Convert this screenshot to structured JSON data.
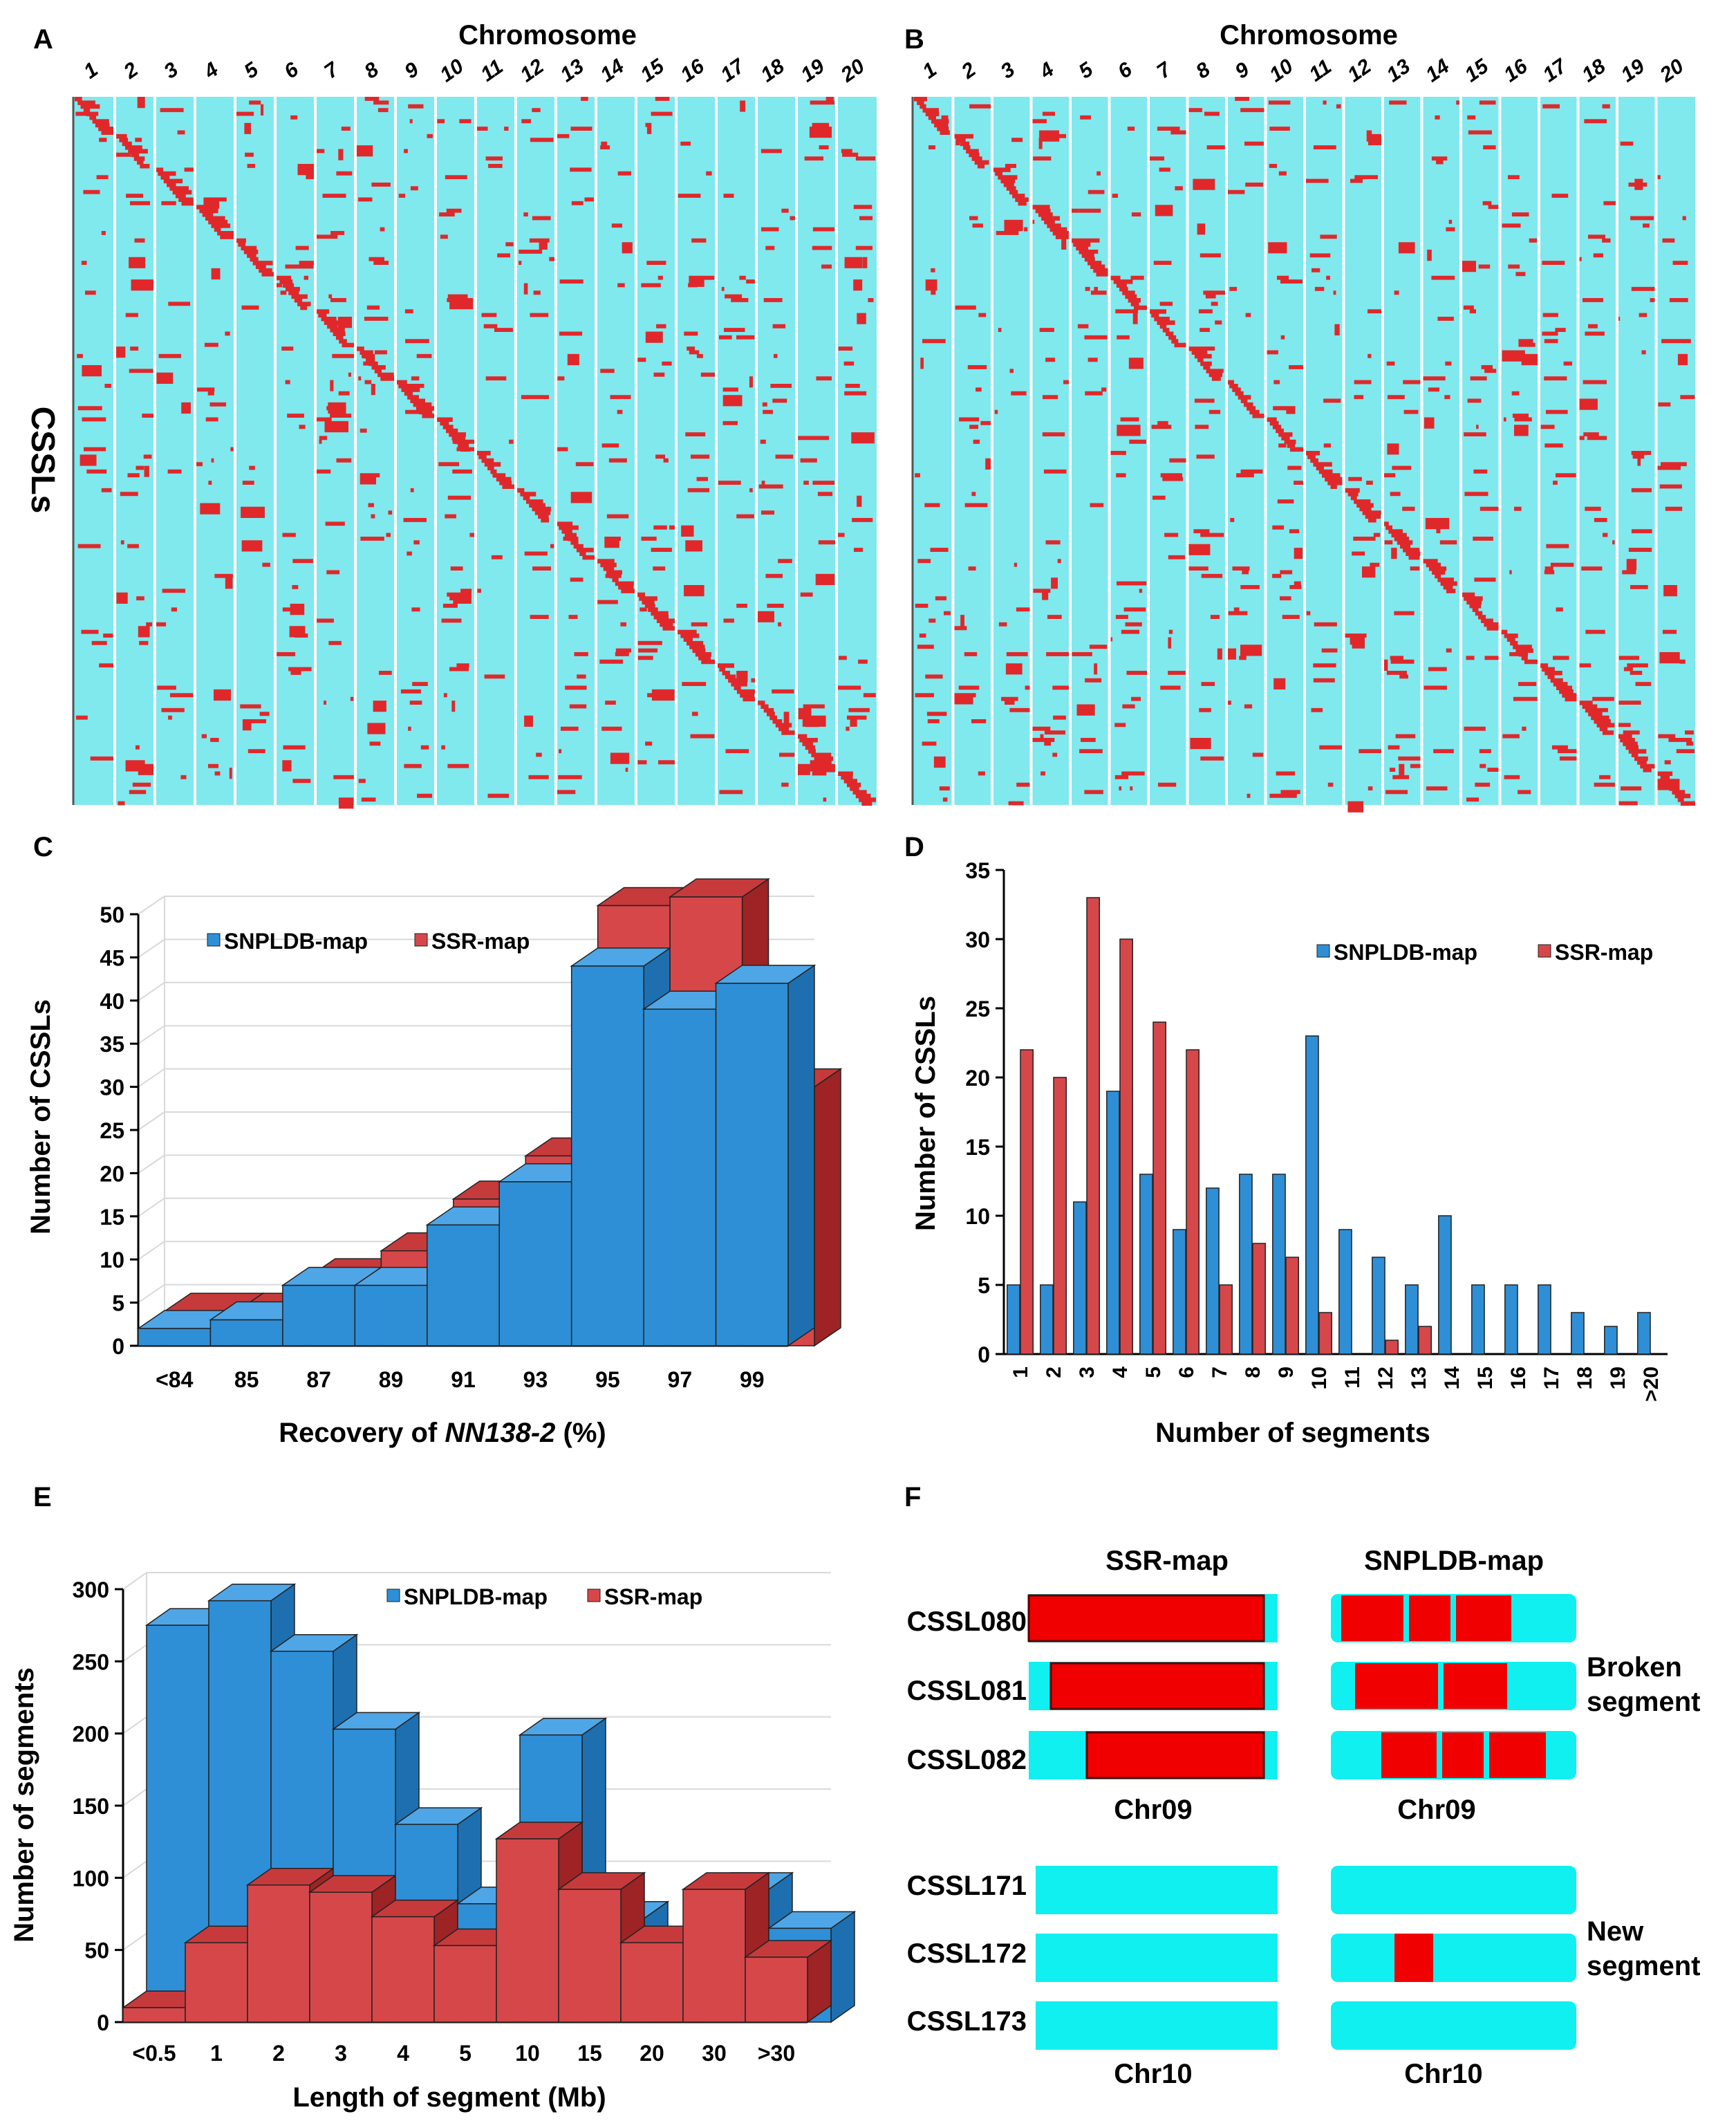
{
  "colors": {
    "cyan": "#7fe9ee",
    "red": "#e0282b",
    "blue": "#2e8fd6",
    "blue_top": "#4fa6e6",
    "blue_side": "#1e6fb0",
    "red_bar": "#d6474a",
    "red_top": "#c63a3c",
    "red_side": "#9e2325",
    "bright_cyan": "#10f0f0",
    "bright_red": "#f00000"
  },
  "panels": {
    "A": {
      "letter": "A",
      "title": "Chromosome",
      "ylabel": "CSSLs",
      "chromosomes": [
        "1",
        "2",
        "3",
        "4",
        "5",
        "6",
        "7",
        "8",
        "9",
        "10",
        "11",
        "12",
        "13",
        "14",
        "15",
        "16",
        "17",
        "18",
        "19",
        "20"
      ]
    },
    "B": {
      "letter": "B",
      "title": "Chromosome",
      "chromosomes": [
        "1",
        "2",
        "3",
        "4",
        "5",
        "6",
        "7",
        "8",
        "9",
        "10",
        "11",
        "12",
        "13",
        "14",
        "15",
        "16",
        "17",
        "18",
        "19",
        "20"
      ]
    },
    "C": {
      "letter": "C"
    },
    "D": {
      "letter": "D"
    },
    "E": {
      "letter": "E"
    },
    "F": {
      "letter": "F",
      "col_ssr": "SSR-map",
      "col_snp": "SNPLDB-map",
      "top_rows": [
        "CSSL080",
        "CSSL081",
        "CSSL082"
      ],
      "bottom_rows": [
        "CSSL171",
        "CSSL172",
        "CSSL173"
      ],
      "chr_top": "Chr09",
      "chr_bottom": "Chr10",
      "label_broken": [
        "Broken",
        "segment"
      ],
      "label_new": [
        "New",
        "segment"
      ]
    }
  },
  "chart_data": [
    {
      "panel": "C",
      "type": "bar",
      "categories": [
        "<84",
        "85",
        "87",
        "89",
        "91",
        "93",
        "95",
        "97",
        "99"
      ],
      "series": [
        {
          "name": "SNPLDB-map",
          "values": [
            2,
            3,
            7,
            7,
            14,
            19,
            44,
            39,
            42
          ]
        },
        {
          "name": "SSR-map",
          "values": [
            4,
            4,
            8,
            11,
            17,
            22,
            51,
            52,
            30
          ]
        }
      ],
      "xlabel_plain": "Recovery of ",
      "xlabel_italic": "NN138-2",
      "xlabel_suffix": " (%)",
      "ylabel": "Number of CSSLs",
      "ylim": [
        0,
        50
      ],
      "yticks": [
        "0",
        "5",
        "10",
        "15",
        "20",
        "25",
        "30",
        "35",
        "40",
        "45",
        "50"
      ],
      "legend": "top-left"
    },
    {
      "panel": "D",
      "type": "bar",
      "categories": [
        "1",
        "2",
        "3",
        "4",
        "5",
        "6",
        "7",
        "8",
        "9",
        "10",
        "11",
        "12",
        "13",
        "14",
        "15",
        "16",
        "17",
        "18",
        "19",
        ">20"
      ],
      "series": [
        {
          "name": "SNPLDB-map",
          "values": [
            5,
            5,
            11,
            19,
            13,
            9,
            12,
            13,
            13,
            23,
            9,
            7,
            5,
            10,
            5,
            5,
            5,
            3,
            2,
            3
          ]
        },
        {
          "name": "SSR-map",
          "values": [
            22,
            20,
            33,
            30,
            24,
            22,
            5,
            8,
            7,
            3,
            0,
            1,
            2,
            0,
            0,
            0,
            0,
            0,
            0,
            0
          ]
        }
      ],
      "xlabel": "Number of segments",
      "ylabel": "Number of CSSLs",
      "ylim": [
        0,
        35
      ],
      "yticks": [
        "0",
        "5",
        "10",
        "15",
        "20",
        "25",
        "30",
        "35"
      ],
      "legend": "top-right"
    },
    {
      "panel": "E",
      "type": "bar",
      "categories": [
        "<0.5",
        "1",
        "2",
        "3",
        "4",
        "5",
        "10",
        "15",
        "20",
        "30",
        ">30"
      ],
      "series": [
        {
          "name": "SNPLDB-map",
          "values": [
            275,
            292,
            257,
            203,
            137,
            82,
            199,
            72,
            0,
            92,
            65
          ]
        },
        {
          "name": "SSR-map",
          "values": [
            10,
            55,
            95,
            90,
            73,
            53,
            127,
            92,
            55,
            92,
            45
          ]
        }
      ],
      "xlabel": "Length of segment (Mb)",
      "ylabel": "Number of segments",
      "ylim": [
        0,
        300
      ],
      "yticks": [
        "0",
        "50",
        "100",
        "150",
        "200",
        "250",
        "300"
      ],
      "legend": "top-right"
    }
  ]
}
